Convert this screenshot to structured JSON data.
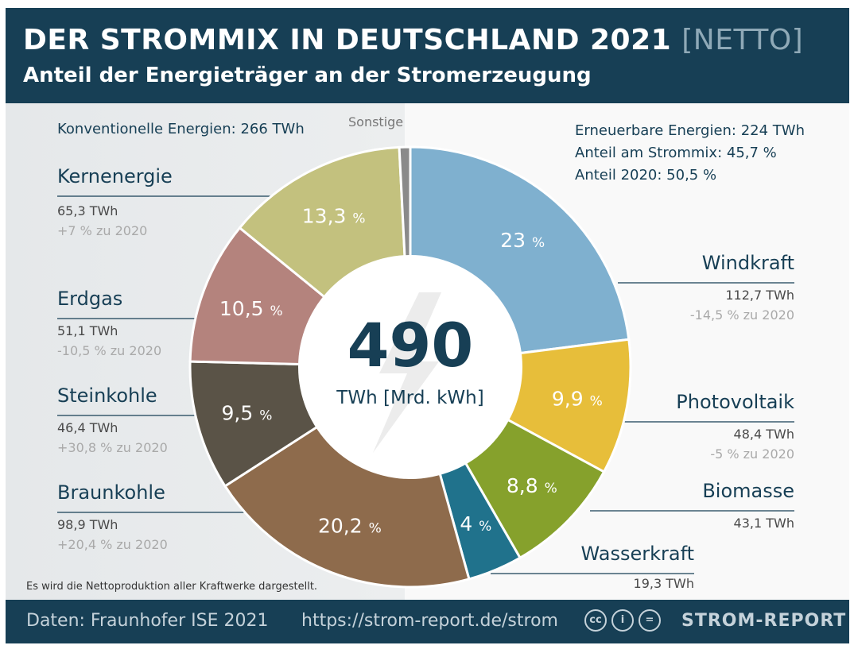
{
  "header": {
    "title": "DER STROMMIX IN DEUTSCHLAND 2021",
    "title_accent": "[NETTO]",
    "subtitle": "Anteil der Energieträger an der Stromerzeugung"
  },
  "conventional": {
    "label": "Konventionelle Energien: 266 TWh"
  },
  "sonstige_label": "Sonstige",
  "renewable": {
    "total": "Erneuerbare Energien: 224 TWh",
    "share": "Anteil am Strommix: 45,7 %",
    "share_2020": "Anteil 2020: 50,5 %"
  },
  "center": {
    "value": "490",
    "unit": "TWh [Mrd. kWh]"
  },
  "note": "Es wird die Nettoproduktion aller Kraftwerke dargestellt.",
  "footer": {
    "source": "Daten: Fraunhofer ISE 2021",
    "url": "https://strom-report.de/strom",
    "brand": "STROM-REPORT",
    "cc_icons": [
      "cc",
      "i",
      "="
    ]
  },
  "chart_data": {
    "type": "pie",
    "variant": "donut",
    "total": 490,
    "unit": "TWh",
    "title": "DER STROMMIX IN DEUTSCHLAND 2021 [NETTO]",
    "subtitle": "Anteil der Energieträger an der Stromerzeugung",
    "slices": [
      {
        "name": "Windkraft",
        "percent": 23,
        "label": "23 %",
        "value": "112,7 TWh",
        "change": "-14,5 % zu 2020",
        "color": "#7fb0cf"
      },
      {
        "name": "Photovoltaik",
        "percent": 9.9,
        "label": "9,9 %",
        "value": "48,4 TWh",
        "change": "-5 % zu 2020",
        "color": "#e7be3a"
      },
      {
        "name": "Biomasse",
        "percent": 8.8,
        "label": "8,8 %",
        "value": "43,1 TWh",
        "change": "",
        "color": "#86a12c"
      },
      {
        "name": "Wasserkraft",
        "percent": 4,
        "label": "4 %",
        "value": "19,3 TWh",
        "change": "",
        "color": "#20728c"
      },
      {
        "name": "Braunkohle",
        "percent": 20.2,
        "label": "20,2 %",
        "value": "98,9 TWh",
        "change": "+20,4 % zu 2020",
        "color": "#8e6b4c"
      },
      {
        "name": "Steinkohle",
        "percent": 9.5,
        "label": "9,5 %",
        "value": "46,4 TWh",
        "change": "+30,8 % zu 2020",
        "color": "#5a5347"
      },
      {
        "name": "Erdgas",
        "percent": 10.5,
        "label": "10,5 %",
        "value": "51,1 TWh",
        "change": "-10,5 % zu 2020",
        "color": "#b4837d"
      },
      {
        "name": "Kernenergie",
        "percent": 13.3,
        "label": "13,3 %",
        "value": "65,3 TWh",
        "change": "+7 % zu 2020",
        "color": "#c3c17e"
      },
      {
        "name": "Sonstige",
        "percent": 0.8,
        "label": "",
        "value": "",
        "change": "",
        "color": "#8a8a8a"
      }
    ]
  }
}
